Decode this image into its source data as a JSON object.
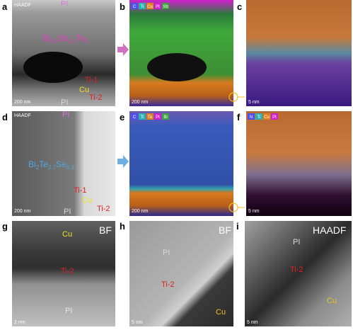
{
  "panels": {
    "a": {
      "letter": "a",
      "mode": "HAADF",
      "top": "PI",
      "formula": [
        "Bi",
        "0.5",
        "Sb",
        "1.5",
        "Te",
        "3"
      ],
      "ti1": "Ti-1",
      "cu": "Cu",
      "ti2": "Ti-2",
      "bottom": "PI",
      "scale": "200 nm"
    },
    "b": {
      "letter": "b",
      "elements": [
        "C",
        "Ti",
        "Cu",
        "Pt",
        "Sb"
      ],
      "scale": "200 nm"
    },
    "c": {
      "letter": "c",
      "scale": "5 nm"
    },
    "d": {
      "letter": "d",
      "mode": "HAADF",
      "top": "PI",
      "formula": [
        "Bi",
        "2",
        "Te",
        "2.7",
        "Se",
        "0.3"
      ],
      "ti1": "Ti-1",
      "cu": "Cu",
      "ti2": "Ti-2",
      "bottom": "PI",
      "scale": "200 nm"
    },
    "e": {
      "letter": "e",
      "elements": [
        "C",
        "Ti",
        "Te",
        "Pt",
        "Bi"
      ],
      "scale": "200 nm"
    },
    "f": {
      "letter": "f",
      "elements": [
        "N",
        "Ti",
        "Cu",
        "Pt"
      ],
      "scale": "5 nm"
    },
    "g": {
      "letter": "g",
      "mode": "BF",
      "cu": "Cu",
      "ti2": "Ti-2",
      "bottom": "PI",
      "scale": "2 nm"
    },
    "h": {
      "letter": "h",
      "mode": "BF",
      "top": "PI",
      "ti2": "Ti-2",
      "cu": "Cu",
      "scale": "5 nm"
    },
    "i": {
      "letter": "i",
      "mode": "HAADF",
      "top": "PI",
      "ti2": "Ti-2",
      "cu": "Cu",
      "scale": "5 nm"
    }
  }
}
